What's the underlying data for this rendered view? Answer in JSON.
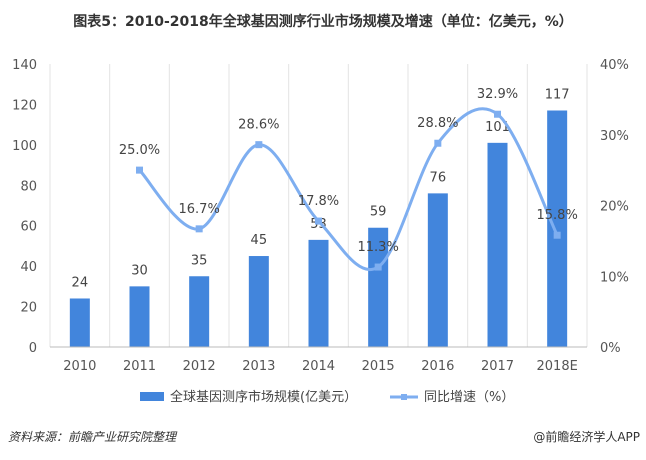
{
  "chart_data": {
    "type": "bar+line",
    "title": "图表5：2010-2018年全球基因测序行业市场规模及增速（单位：亿美元，%）",
    "categories": [
      "2010",
      "2011",
      "2012",
      "2013",
      "2014",
      "2015",
      "2016",
      "2017",
      "2018E"
    ],
    "series": [
      {
        "name": "全球基因测序市场规模(亿美元）",
        "type": "bar",
        "axis": "left",
        "values": [
          24,
          30,
          35,
          45,
          53,
          59,
          76,
          101,
          117
        ],
        "color": "#4285dc"
      },
      {
        "name": "同比增速（%）",
        "type": "line",
        "axis": "right",
        "values": [
          null,
          25.0,
          16.7,
          28.6,
          17.8,
          11.3,
          28.8,
          32.9,
          15.8
        ],
        "labels": [
          "",
          "25.0%",
          "16.7%",
          "28.6%",
          "17.8%",
          "11.3%",
          "28.8%",
          "32.9%",
          "15.8%"
        ],
        "color": "#7eaef0"
      }
    ],
    "ylim": [
      0,
      140
    ],
    "yticks": [
      "0",
      "20",
      "40",
      "60",
      "80",
      "100",
      "120",
      "140"
    ],
    "y2lim": [
      0,
      40
    ],
    "y2ticks": [
      "0%",
      "10%",
      "20%",
      "30%",
      "40%"
    ],
    "grid": "vertical",
    "legend": "bottom"
  },
  "footer": {
    "source": "资料来源：前瞻产业研究院整理",
    "credit": "@前瞻经济学人APP"
  }
}
